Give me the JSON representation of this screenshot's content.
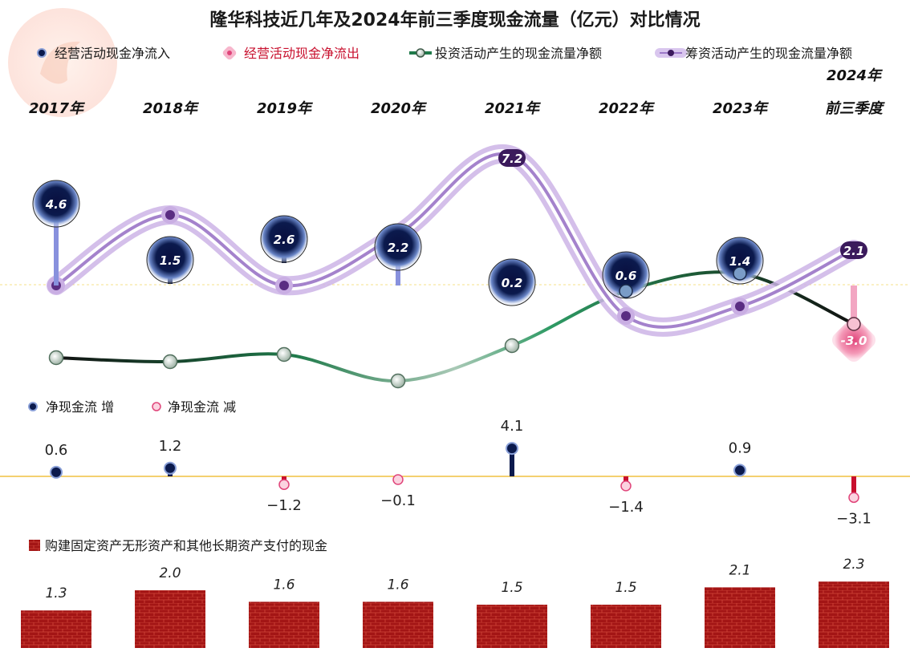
{
  "title": "隆华科技近几年及2024年前三季度现金流量（亿元）对比情况",
  "legend": {
    "op_in": "经营活动现金净流入",
    "op_out": "经营活动现金净流出",
    "invest": "投资活动产生的现金流量净额",
    "finance": "筹资活动产生的现金流量净额",
    "net_up": "净现金流  增",
    "net_down": "净现金流  减",
    "capex": "购建固定资产无形资产和其他长期资产支付的现金"
  },
  "colors": {
    "op_in": "#0b1a4d",
    "op_out": "#e0457a",
    "invest_dark": "#111111",
    "invest_green": "#1f7a4a",
    "finance": "#b89ad6",
    "bar": "#a31515",
    "net_up": "#0b1a4d",
    "net_down": "#c8102e",
    "zero_line": "#f0c040"
  },
  "years": [
    {
      "line1": "2017年",
      "line2": ""
    },
    {
      "line1": "2018年",
      "line2": ""
    },
    {
      "line1": "2019年",
      "line2": ""
    },
    {
      "line1": "2020年",
      "line2": ""
    },
    {
      "line1": "2021年",
      "line2": ""
    },
    {
      "line1": "2022年",
      "line2": ""
    },
    {
      "line1": "2023年",
      "line2": ""
    },
    {
      "line1": "2024年",
      "line2": "前三季度"
    }
  ],
  "chart_data": [
    {
      "type": "line",
      "title": "隆华科技近几年及2024年前三季度现金流量（亿元）对比情况",
      "categories": [
        "2017年",
        "2018年",
        "2019年",
        "2020年",
        "2021年",
        "2022年",
        "2023年",
        "2024年前三季度"
      ],
      "series": [
        {
          "name": "经营活动现金净流入/净流出",
          "values": [
            4.6,
            1.5,
            2.6,
            2.2,
            0.2,
            0.6,
            1.4,
            -3.0
          ],
          "labels": [
            "4.6",
            "1.5",
            "2.6",
            "2.2",
            "0.2",
            "0.6",
            "1.4",
            "-3.0"
          ]
        },
        {
          "name": "筹资活动产生的现金流量净额",
          "values": [
            null,
            null,
            null,
            null,
            7.2,
            null,
            null,
            2.1
          ],
          "labels": [
            "",
            "",
            "",
            "",
            "7.2",
            "",
            "",
            "2.1"
          ]
        }
      ],
      "legend": [
        "经营活动现金净流入",
        "经营活动现金净流出",
        "投资活动产生的现金流量净额",
        "筹资活动产生的现金流量净额"
      ],
      "legend_position": "top"
    },
    {
      "type": "scatter",
      "categories": [
        "2017年",
        "2018年",
        "2019年",
        "2020年",
        "2021年",
        "2022年",
        "2023年",
        "2024年前三季度"
      ],
      "values": [
        0.6,
        1.2,
        -1.2,
        -0.1,
        4.1,
        -1.4,
        0.9,
        -3.1
      ],
      "labels": [
        "0.6",
        "1.2",
        "−1.2",
        "−0.1",
        "4.1",
        "−1.4",
        "0.9",
        "−3.1"
      ],
      "legend": [
        "净现金流  增",
        "净现金流  减"
      ]
    },
    {
      "type": "bar",
      "categories": [
        "2017年",
        "2018年",
        "2019年",
        "2020年",
        "2021年",
        "2022年",
        "2023年",
        "2024年前三季度"
      ],
      "values": [
        1.3,
        2.0,
        1.6,
        1.6,
        1.5,
        1.5,
        2.1,
        2.3
      ],
      "labels": [
        "1.3",
        "2.0",
        "1.6",
        "1.6",
        "1.5",
        "1.5",
        "2.1",
        "2.3"
      ],
      "legend": [
        "购建固定资产无形资产和其他长期资产支付的现金"
      ]
    }
  ]
}
